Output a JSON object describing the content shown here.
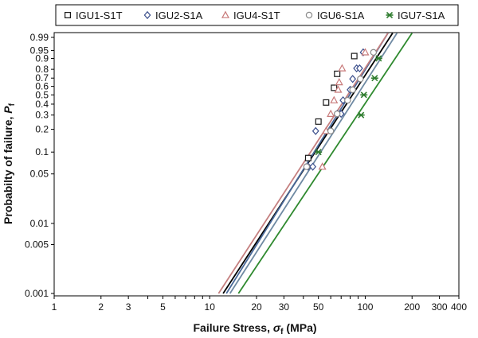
{
  "chart_data": {
    "type": "scatter",
    "xlabel": {
      "prefix": "Failure Stress, ",
      "symbol": "σ",
      "sub": "f",
      "suffix": " (MPa)"
    },
    "ylabel": {
      "prefix": "Probabilty of failure, ",
      "symbol": "P",
      "sub": "f"
    },
    "x_scale": "log",
    "y_scale": "weibull",
    "xlim": [
      1,
      400
    ],
    "ylim": [
      0.001,
      0.99
    ],
    "x_ticks": [
      1,
      2,
      3,
      5,
      10,
      20,
      30,
      50,
      100,
      200,
      300,
      400
    ],
    "x_tick_labels": [
      "1",
      "2",
      "3",
      "5",
      "10",
      "20",
      "30",
      "50",
      "100",
      "200",
      "300",
      "400"
    ],
    "y_ticks": [
      0.001,
      0.005,
      0.01,
      0.05,
      0.1,
      0.2,
      0.3,
      0.4,
      0.5,
      0.6,
      0.7,
      0.8,
      0.9,
      0.95,
      0.99
    ],
    "y_tick_labels": [
      "0.001",
      "0.005",
      "0.01",
      "0.05",
      "0.1",
      "0.2",
      "0.3",
      "0.4",
      "0.5",
      "0.6",
      "0.7",
      "0.8",
      "0.9",
      "0.95",
      "0.99"
    ],
    "grid": false,
    "legend_position": "top",
    "series": [
      {
        "name": "IGU1-S1T",
        "marker": "square",
        "color": "#1a1a1a",
        "line_color": "#000000",
        "points": [
          [
            43,
            0.083
          ],
          [
            50,
            0.25
          ],
          [
            56,
            0.417
          ],
          [
            63,
            0.583
          ],
          [
            66,
            0.75
          ],
          [
            85,
            0.917
          ]
        ],
        "fit": [
          [
            12.2,
            0.001
          ],
          [
            150,
            0.995
          ]
        ]
      },
      {
        "name": "IGU2-S1A",
        "marker": "diamond",
        "color": "#3b4f8c",
        "line_color": "#4a6a9a",
        "points": [
          [
            43,
            0.063
          ],
          [
            46,
            0.063
          ],
          [
            48,
            0.19
          ],
          [
            66,
            0.31
          ],
          [
            70,
            0.31
          ],
          [
            72,
            0.44
          ],
          [
            80,
            0.56
          ],
          [
            83,
            0.69
          ],
          [
            88,
            0.81
          ],
          [
            92,
            0.81
          ],
          [
            97,
            0.94
          ]
        ],
        "fit": [
          [
            12.8,
            0.001
          ],
          [
            140,
            0.995
          ]
        ]
      },
      {
        "name": "IGU4-S1T",
        "marker": "triangle",
        "color": "#c87a7a",
        "line_color": "#c58080",
        "points": [
          [
            53,
            0.063
          ],
          [
            56,
            0.19
          ],
          [
            60,
            0.31
          ],
          [
            63,
            0.44
          ],
          [
            67,
            0.56
          ],
          [
            68,
            0.65
          ],
          [
            71,
            0.81
          ],
          [
            100,
            0.94
          ]
        ],
        "fit": [
          [
            11.4,
            0.001
          ],
          [
            140,
            0.995
          ]
        ]
      },
      {
        "name": "IGU6-S1A",
        "marker": "circle",
        "color": "#8a8a8a",
        "line_color": "#6f8aa3",
        "points": [
          [
            42,
            0.063
          ],
          [
            60,
            0.19
          ],
          [
            66,
            0.31
          ],
          [
            77,
            0.44
          ],
          [
            83,
            0.56
          ],
          [
            93,
            0.69
          ],
          [
            113,
            0.94
          ]
        ],
        "fit": [
          [
            13.5,
            0.001
          ],
          [
            160,
            0.995
          ]
        ]
      },
      {
        "name": "IGU7-S1A",
        "marker": "star",
        "color": "#2f7d2f",
        "line_color": "#2f8a2f",
        "points": [
          [
            50,
            0.1
          ],
          [
            94,
            0.3
          ],
          [
            98,
            0.5
          ],
          [
            115,
            0.7
          ],
          [
            122,
            0.9
          ]
        ],
        "fit": [
          [
            15.3,
            0.001
          ],
          [
            200,
            0.995
          ]
        ]
      }
    ]
  }
}
